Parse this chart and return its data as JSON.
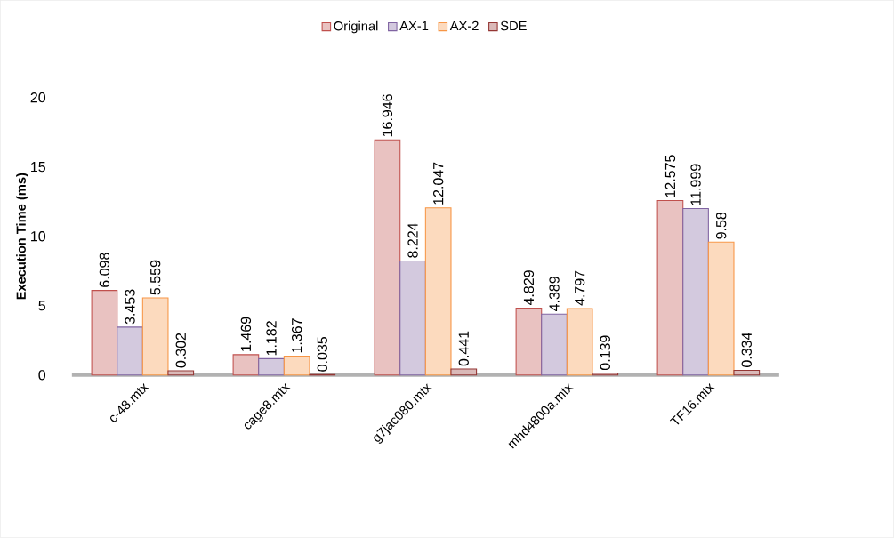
{
  "chart_data": {
    "type": "bar",
    "ylabel": "Execution Time (ms)",
    "categories": [
      "c-48.mtx",
      "cage8.mtx",
      "g7jac080.mtx",
      "mhd4800a.mtx",
      "TF16.mtx"
    ],
    "series": [
      {
        "name": "Original",
        "color": "#c0504d",
        "values": [
          6.098,
          1.469,
          16.946,
          4.829,
          12.575
        ]
      },
      {
        "name": "AX-1",
        "color": "#8064a2",
        "values": [
          3.453,
          1.182,
          8.224,
          4.389,
          11.999
        ]
      },
      {
        "name": "AX-2",
        "color": "#f79646",
        "values": [
          5.559,
          1.367,
          12.047,
          4.797,
          9.58
        ]
      },
      {
        "name": "SDE",
        "color": "#943634",
        "values": [
          0.302,
          0.035,
          0.441,
          0.139,
          0.334
        ]
      }
    ],
    "ylim": [
      0,
      20
    ],
    "yticks": [
      0,
      5,
      10,
      15,
      20
    ],
    "data_labels": true,
    "legend": "top",
    "grid": false
  }
}
